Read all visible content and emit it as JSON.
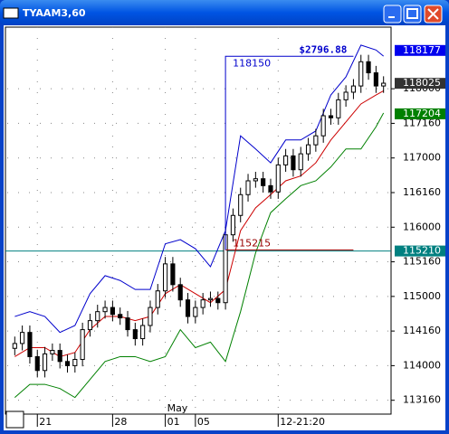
{
  "window": {
    "title": "TYAAM3,60"
  },
  "chart_data": {
    "type": "candlestick",
    "color": "#000000",
    "x": [
      0,
      1,
      2,
      3,
      4,
      5,
      6,
      7,
      8,
      9,
      10,
      11,
      12,
      13,
      14,
      15,
      16,
      17,
      18,
      19,
      20,
      21,
      22,
      23,
      24,
      25,
      26,
      27,
      28,
      29,
      30,
      31,
      32,
      33,
      34,
      35,
      36,
      37,
      38,
      39,
      40,
      41,
      42,
      43,
      44,
      45,
      46,
      47,
      48,
      49
    ],
    "open": [
      114.25,
      114.32,
      114.48,
      114.13,
      113.93,
      114.17,
      114.22,
      114.06,
      114.0,
      114.09,
      114.52,
      114.65,
      114.78,
      114.84,
      114.74,
      114.69,
      114.52,
      114.39,
      114.58,
      114.84,
      115.08,
      115.47,
      115.17,
      114.95,
      114.71,
      114.84,
      114.95,
      114.97,
      114.91,
      115.89,
      116.17,
      116.47,
      116.67,
      116.7,
      116.6,
      116.51,
      116.9,
      117.03,
      116.83,
      117.06,
      117.19,
      117.32,
      117.61,
      117.58,
      117.84,
      117.95,
      118.04,
      118.39,
      118.23,
      118.04
    ],
    "high": [
      114.42,
      114.58,
      114.58,
      114.23,
      114.27,
      114.32,
      114.32,
      114.16,
      114.19,
      114.62,
      114.75,
      114.88,
      114.94,
      114.94,
      114.84,
      114.79,
      114.62,
      114.68,
      114.94,
      115.18,
      115.57,
      115.57,
      115.27,
      115.05,
      114.94,
      115.05,
      115.07,
      115.07,
      115.99,
      116.27,
      116.57,
      116.77,
      116.8,
      116.8,
      116.7,
      117.0,
      117.13,
      117.13,
      117.16,
      117.29,
      117.42,
      117.71,
      117.71,
      117.94,
      118.05,
      118.14,
      118.49,
      118.49,
      118.33,
      118.18
    ],
    "low": [
      114.15,
      114.22,
      114.03,
      113.83,
      113.83,
      114.07,
      113.96,
      113.9,
      113.9,
      113.99,
      114.42,
      114.55,
      114.68,
      114.64,
      114.59,
      114.42,
      114.29,
      114.29,
      114.48,
      114.74,
      114.98,
      115.07,
      114.85,
      114.61,
      114.61,
      114.74,
      114.85,
      114.81,
      114.81,
      115.79,
      116.07,
      116.37,
      116.57,
      116.5,
      116.41,
      116.41,
      116.8,
      116.73,
      116.73,
      116.96,
      117.09,
      117.22,
      117.48,
      117.48,
      117.74,
      117.85,
      117.94,
      118.13,
      117.94,
      117.94
    ],
    "close": [
      114.32,
      114.48,
      114.13,
      113.93,
      114.17,
      114.22,
      114.06,
      114.0,
      114.09,
      114.52,
      114.65,
      114.78,
      114.84,
      114.74,
      114.69,
      114.52,
      114.39,
      114.58,
      114.84,
      115.08,
      115.47,
      115.17,
      114.95,
      114.71,
      114.84,
      114.95,
      114.97,
      114.91,
      115.89,
      116.17,
      116.47,
      116.67,
      116.7,
      116.6,
      116.51,
      116.9,
      117.03,
      116.83,
      117.06,
      117.19,
      117.32,
      117.61,
      117.58,
      117.84,
      117.95,
      118.04,
      118.39,
      118.23,
      118.04,
      118.08
    ],
    "bands": [
      {
        "color": "#0000cc",
        "x": [
          0,
          2,
          4,
          6,
          8,
          10,
          12,
          14,
          16,
          18,
          20,
          22,
          24,
          26,
          28,
          30,
          32,
          34,
          36,
          38,
          40,
          42,
          44,
          46,
          48,
          49
        ],
        "values": [
          114.71,
          114.78,
          114.71,
          114.48,
          114.58,
          115.04,
          115.3,
          115.23,
          115.1,
          115.1,
          115.76,
          115.82,
          115.69,
          115.43,
          115.95,
          117.32,
          117.13,
          116.93,
          117.26,
          117.26,
          117.39,
          117.91,
          118.17,
          118.63,
          118.56,
          118.47
        ]
      },
      {
        "color": "#cc0000",
        "x": [
          0,
          2,
          4,
          6,
          8,
          10,
          12,
          14,
          16,
          18,
          20,
          22,
          24,
          26,
          28,
          30,
          32,
          34,
          36,
          38,
          40,
          42,
          44,
          46,
          48,
          49
        ],
        "values": [
          114.13,
          114.26,
          114.26,
          114.13,
          114.19,
          114.52,
          114.71,
          114.71,
          114.65,
          114.71,
          115.04,
          115.17,
          115.04,
          114.91,
          115.1,
          115.95,
          116.28,
          116.47,
          116.67,
          116.74,
          116.93,
          117.26,
          117.52,
          117.78,
          117.91,
          117.97
        ]
      },
      {
        "color": "#008000",
        "x": [
          0,
          2,
          4,
          6,
          8,
          10,
          12,
          14,
          16,
          18,
          20,
          22,
          24,
          26,
          28,
          30,
          32,
          34,
          36,
          38,
          40,
          42,
          44,
          46,
          48,
          49
        ],
        "values": [
          113.54,
          113.73,
          113.73,
          113.67,
          113.54,
          113.8,
          114.06,
          114.13,
          114.13,
          114.06,
          114.13,
          114.52,
          114.26,
          114.34,
          114.06,
          114.78,
          115.63,
          116.21,
          116.41,
          116.6,
          116.67,
          116.87,
          117.13,
          117.13,
          117.45,
          117.65
        ]
      }
    ],
    "xlim": [
      -1,
      50
    ],
    "ylim": [
      113.3,
      118.89
    ],
    "xticks": [
      {
        "value": 3,
        "label": "21"
      },
      {
        "value": 13,
        "label": "28"
      },
      {
        "value": 20,
        "label": "01"
      },
      {
        "value": 24,
        "label": "05"
      },
      {
        "value": 35,
        "label": "12-21:20"
      }
    ],
    "month_label": {
      "value": 20,
      "label": "May"
    },
    "yticks": [
      {
        "value": 113.5,
        "label": "113160"
      },
      {
        "value": 114.0,
        "label": "114000"
      },
      {
        "value": 114.5,
        "label": "114160"
      },
      {
        "value": 115.0,
        "label": "115000"
      },
      {
        "value": 115.5,
        "label": "115160"
      },
      {
        "value": 116.0,
        "label": "116000"
      },
      {
        "value": 116.5,
        "label": "116160"
      },
      {
        "value": 117.0,
        "label": "117000"
      },
      {
        "value": 117.5,
        "label": "117160"
      },
      {
        "value": 118.0,
        "label": "118000"
      }
    ],
    "grid": true,
    "level_line": {
      "value": 115.65625,
      "color": "#008080"
    },
    "trade": {
      "x_from": 28,
      "x_to": 45,
      "entry": {
        "value": 115.671875,
        "label": "115215",
        "color": "#990000"
      },
      "exit": {
        "value": 118.46875,
        "label": "118150",
        "color": "#0000cc"
      },
      "profit": {
        "value": 2796.88,
        "label": "$2796.88"
      }
    },
    "markers": [
      {
        "value": 118.553125,
        "label": "118177",
        "color": "#0000ee"
      },
      {
        "value": 118.078125,
        "label": "118025",
        "color": "#333333"
      },
      {
        "value": 117.6375,
        "label": "117204",
        "color": "#008000"
      },
      {
        "value": 115.65625,
        "label": "115210",
        "color": "#008080"
      }
    ]
  }
}
